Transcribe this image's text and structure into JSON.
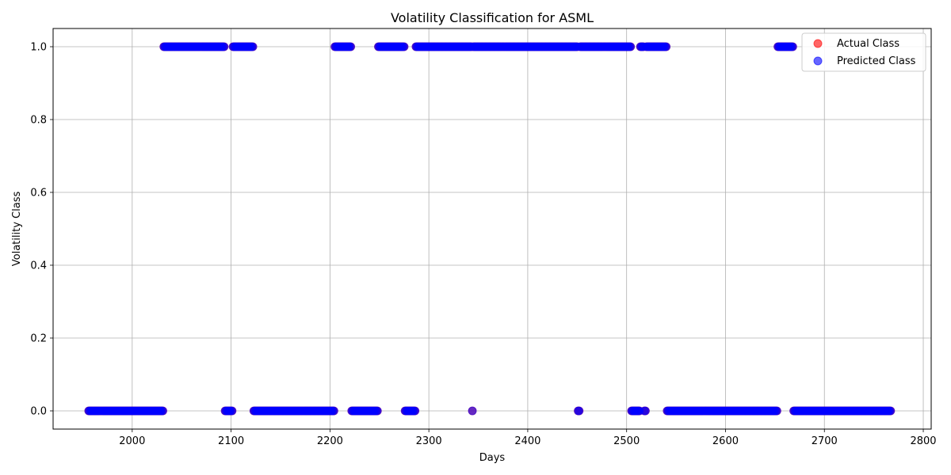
{
  "chart_data": {
    "type": "scatter",
    "title": "Volatility Classification for ASML",
    "xlabel": "Days",
    "ylabel": "Volatility Class",
    "xlim": [
      1920,
      2808
    ],
    "ylim": [
      -0.05,
      1.05
    ],
    "x_ticks": [
      2000,
      2100,
      2200,
      2300,
      2400,
      2500,
      2600,
      2700,
      2800
    ],
    "y_ticks": [
      0.0,
      0.2,
      0.4,
      0.6,
      0.8,
      1.0
    ],
    "x_tick_labels": [
      "2000",
      "2100",
      "2200",
      "2300",
      "2400",
      "2500",
      "2600",
      "2700",
      "2800"
    ],
    "y_tick_labels": [
      "0.0",
      "0.2",
      "0.4",
      "0.6",
      "0.8",
      "1.0"
    ],
    "grid": true,
    "legend_position": "upper-right",
    "marker_alpha": 0.6,
    "series": [
      {
        "name": "Actual Class",
        "color": "#ff0000",
        "segments": [
          {
            "start": 1956,
            "end": 2031,
            "value": 0
          },
          {
            "start": 2032,
            "end": 2093,
            "value": 1
          },
          {
            "start": 2094,
            "end": 2101,
            "value": 0
          },
          {
            "start": 2102,
            "end": 2122,
            "value": 1
          },
          {
            "start": 2123,
            "end": 2204,
            "value": 0
          },
          {
            "start": 2205,
            "end": 2221,
            "value": 1
          },
          {
            "start": 2222,
            "end": 2248,
            "value": 0
          },
          {
            "start": 2249,
            "end": 2275,
            "value": 1
          },
          {
            "start": 2276,
            "end": 2286,
            "value": 0
          },
          {
            "start": 2287,
            "end": 2343,
            "value": 1
          },
          {
            "start": 2344,
            "end": 2344,
            "value": 0
          },
          {
            "start": 2345,
            "end": 2450,
            "value": 1
          },
          {
            "start": 2451,
            "end": 2452,
            "value": 0
          },
          {
            "start": 2453,
            "end": 2504,
            "value": 1
          },
          {
            "start": 2505,
            "end": 2513,
            "value": 0
          },
          {
            "start": 2514,
            "end": 2517,
            "value": 1
          },
          {
            "start": 2518,
            "end": 2519,
            "value": 0
          },
          {
            "start": 2520,
            "end": 2540,
            "value": 1
          },
          {
            "start": 2541,
            "end": 2652,
            "value": 0
          },
          {
            "start": 2653,
            "end": 2668,
            "value": 1
          },
          {
            "start": 2669,
            "end": 2767,
            "value": 0
          }
        ]
      },
      {
        "name": "Predicted Class",
        "color": "#0000ff",
        "segments": [
          {
            "start": 1956,
            "end": 2031,
            "value": 0
          },
          {
            "start": 2032,
            "end": 2093,
            "value": 1
          },
          {
            "start": 2094,
            "end": 2101,
            "value": 0
          },
          {
            "start": 2102,
            "end": 2122,
            "value": 1
          },
          {
            "start": 2123,
            "end": 2204,
            "value": 0
          },
          {
            "start": 2205,
            "end": 2221,
            "value": 1
          },
          {
            "start": 2222,
            "end": 2248,
            "value": 0
          },
          {
            "start": 2249,
            "end": 2275,
            "value": 1
          },
          {
            "start": 2276,
            "end": 2286,
            "value": 0
          },
          {
            "start": 2287,
            "end": 2343,
            "value": 1
          },
          {
            "start": 2344,
            "end": 2344,
            "value": 0
          },
          {
            "start": 2345,
            "end": 2450,
            "value": 1
          },
          {
            "start": 2451,
            "end": 2452,
            "value": 0
          },
          {
            "start": 2453,
            "end": 2504,
            "value": 1
          },
          {
            "start": 2505,
            "end": 2513,
            "value": 0
          },
          {
            "start": 2514,
            "end": 2517,
            "value": 1
          },
          {
            "start": 2518,
            "end": 2519,
            "value": 0
          },
          {
            "start": 2520,
            "end": 2540,
            "value": 1
          },
          {
            "start": 2541,
            "end": 2652,
            "value": 0
          },
          {
            "start": 2653,
            "end": 2668,
            "value": 1
          },
          {
            "start": 2669,
            "end": 2767,
            "value": 0
          }
        ]
      }
    ]
  }
}
